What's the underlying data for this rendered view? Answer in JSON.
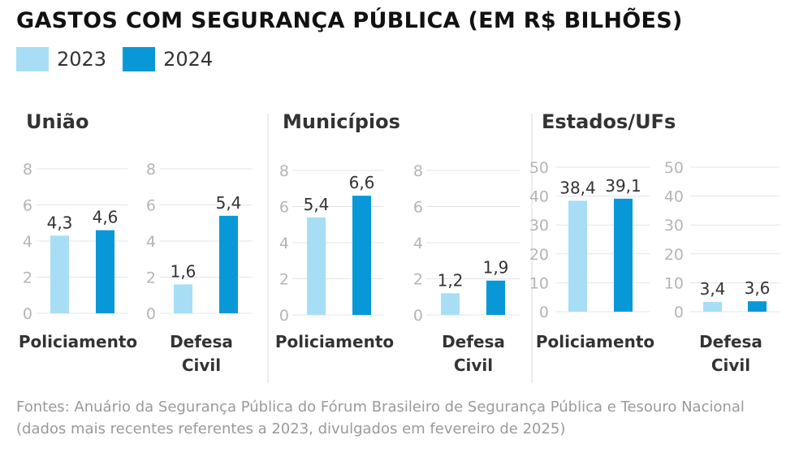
{
  "chart_data": {
    "type": "bar",
    "title": "GASTOS COM SEGURANÇA PÚBLICA (EM R$ BILHÕES)",
    "legend": {
      "position": "top-left",
      "entries": [
        "2023",
        "2024"
      ]
    },
    "colors": {
      "2023": "#a8def5",
      "2024": "#0898d8"
    },
    "grid": true,
    "groups": [
      {
        "title": "União",
        "charts": [
          {
            "category": [
              "Policiamento"
            ],
            "ylim": [
              0,
              8
            ],
            "yticks": [
              "0",
              "2",
              "4",
              "6",
              "8"
            ],
            "values": [
              4.3,
              4.6
            ],
            "labels": [
              "4,3",
              "4,6"
            ]
          },
          {
            "category": [
              "Defesa",
              "Civil"
            ],
            "ylim": [
              0,
              8
            ],
            "yticks": [
              "0",
              "2",
              "4",
              "6",
              "8"
            ],
            "values": [
              1.6,
              5.4
            ],
            "labels": [
              "1,6",
              "5,4"
            ]
          }
        ]
      },
      {
        "title": "Municípios",
        "charts": [
          {
            "category": [
              "Policiamento"
            ],
            "ylim": [
              0,
              8
            ],
            "yticks": [
              "0",
              "2",
              "4",
              "6",
              "8"
            ],
            "values": [
              5.4,
              6.6
            ],
            "labels": [
              "5,4",
              "6,6"
            ]
          },
          {
            "category": [
              "Defesa",
              "Civil"
            ],
            "ylim": [
              0,
              8
            ],
            "yticks": [
              "0",
              "2",
              "4",
              "6",
              "8"
            ],
            "values": [
              1.2,
              1.9
            ],
            "labels": [
              "1,2",
              "1,9"
            ]
          }
        ]
      },
      {
        "title": "Estados/UFs",
        "charts": [
          {
            "category": [
              "Policiamento"
            ],
            "ylim": [
              0,
              50
            ],
            "yticks": [
              "0",
              "10",
              "20",
              "30",
              "40",
              "50"
            ],
            "values": [
              38.4,
              39.1
            ],
            "labels": [
              "38,4",
              "39,1"
            ]
          },
          {
            "category": [
              "Defesa",
              "Civil"
            ],
            "ylim": [
              0,
              50
            ],
            "yticks": [
              "0",
              "10",
              "20",
              "30",
              "40",
              "50"
            ],
            "values": [
              3.4,
              3.6
            ],
            "labels": [
              "3,4",
              "3,6"
            ]
          }
        ]
      }
    ]
  },
  "source": "Fontes: Anuário da Segurança Pública do Fórum Brasileiro de Segurança Pública e Tesouro Nacional (dados mais recentes referentes a 2023, divulgados em fevereiro de 2025)"
}
